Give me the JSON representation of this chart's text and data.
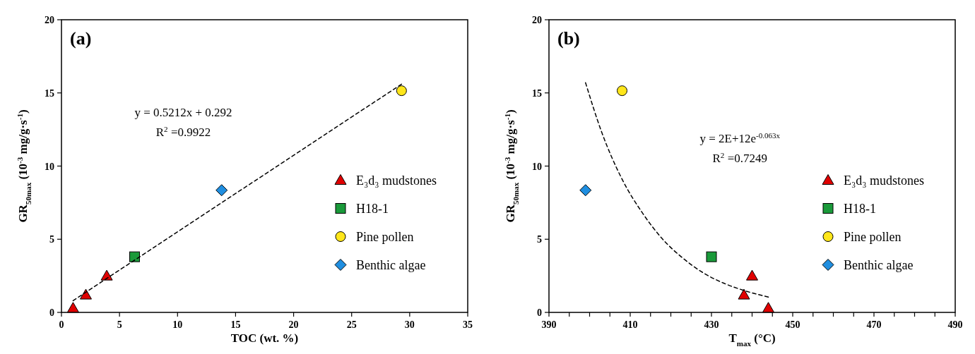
{
  "chart_data": [
    {
      "type": "scatter",
      "title": "(a)",
      "xlabel": "TOC (wt. %)",
      "ylabel": "GR$_{50max}$ (10$^{-3}$ mg/g·s$^{-1}$)",
      "xlim": [
        0,
        35
      ],
      "xticks": [
        0,
        5,
        10,
        15,
        20,
        25,
        30,
        35
      ],
      "ylim": [
        0,
        20
      ],
      "yticks": [
        0,
        5,
        10,
        15,
        20
      ],
      "grid": false,
      "legend": "right",
      "annotations": [
        "y = 0.5212x + 0.292",
        "R$^{2}$ =0.9922"
      ],
      "series": [
        {
          "name": "E₃d₃ mudstones",
          "color": "#e00000",
          "marker": "triangle",
          "x": [
            1.0,
            2.1,
            3.9
          ],
          "values": [
            0.3,
            1.2,
            2.5
          ]
        },
        {
          "name": "H18-1",
          "color": "#1a9a3a",
          "marker": "square",
          "x": [
            6.3
          ],
          "values": [
            3.8
          ]
        },
        {
          "name": "Pine pollen",
          "color": "#ffe61a",
          "marker": "circle",
          "x": [
            29.3
          ],
          "values": [
            15.15
          ]
        },
        {
          "name": "Benthic algae",
          "color": "#1f8ee0",
          "marker": "diamond",
          "x": [
            13.8
          ],
          "values": [
            8.35
          ]
        },
        {
          "type": "line",
          "color": "#000000",
          "marker": "none",
          "line_style": "dashed",
          "x": [
            1.0,
            29.3
          ],
          "values": [
            0.8,
            15.6
          ]
        }
      ]
    },
    {
      "type": "scatter",
      "title": "(b)",
      "xlabel": "T$_{max}$ (°C)",
      "ylabel": "GR$_{50max}$ (10$^{-3}$ mg/g·s$^{-1}$)",
      "xlim": [
        390,
        490
      ],
      "xticks": [
        390,
        {
          "value": 395,
          "label": null
        },
        {
          "value": 400,
          "label": null
        },
        {
          "value": 405,
          "label": null
        },
        410,
        {
          "value": 415,
          "label": null
        },
        {
          "value": 420,
          "label": null
        },
        {
          "value": 425,
          "label": null
        },
        430,
        {
          "value": 435,
          "label": null
        },
        {
          "value": 440,
          "label": null
        },
        {
          "value": 445,
          "label": null
        },
        450,
        {
          "value": 455,
          "label": null
        },
        {
          "value": 460,
          "label": null
        },
        {
          "value": 465,
          "label": null
        },
        470,
        {
          "value": 475,
          "label": null
        },
        {
          "value": 480,
          "label": null
        },
        {
          "value": 485,
          "label": null
        },
        490
      ],
      "ylim": [
        0,
        20
      ],
      "yticks": [
        0,
        5,
        10,
        15,
        20
      ],
      "grid": false,
      "legend": "right",
      "annotations": [
        "y = 2E+12e$^{-0.063x}$",
        "R$^{2}$ =0.7249"
      ],
      "series": [
        {
          "name": "E₃d₃ mudstones",
          "color": "#e00000",
          "marker": "triangle",
          "x": [
            438,
            440,
            444
          ],
          "values": [
            1.2,
            2.5,
            0.3
          ]
        },
        {
          "name": "H18-1",
          "color": "#1a9a3a",
          "marker": "square",
          "x": [
            430
          ],
          "values": [
            3.8
          ]
        },
        {
          "name": "Pine pollen",
          "color": "#ffe61a",
          "marker": "circle",
          "x": [
            408
          ],
          "values": [
            15.15
          ]
        },
        {
          "name": "Benthic algae",
          "color": "#1f8ee0",
          "marker": "diamond",
          "x": [
            399
          ],
          "values": [
            8.35
          ]
        },
        {
          "type": "line",
          "color": "#000000",
          "marker": "none",
          "line_style": "dashed",
          "x": [
            399,
            403,
            408,
            413,
            418,
            423,
            428,
            433,
            438,
            444
          ],
          "values": [
            15.7,
            12.3,
            9.1,
            6.8,
            5.0,
            3.7,
            2.7,
            2.0,
            1.5,
            1.05
          ]
        }
      ]
    }
  ]
}
